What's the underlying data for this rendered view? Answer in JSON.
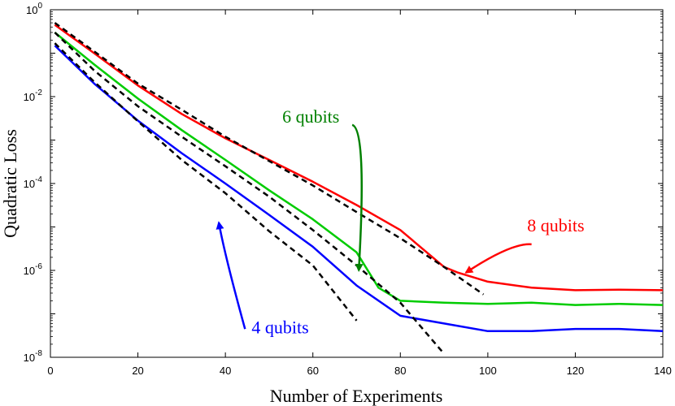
{
  "chart_data": {
    "type": "line",
    "title": "",
    "xlabel": "Number of Experiments",
    "ylabel": "Quadratic Loss",
    "xlim": [
      0,
      140
    ],
    "ylim_exp": [
      -8,
      0
    ],
    "yscale": "log",
    "grid": false,
    "x_ticks": [
      0,
      20,
      40,
      60,
      80,
      100,
      120,
      140
    ],
    "x_tick_labels": [
      "0",
      "20",
      "40",
      "60",
      "80",
      "100",
      "120",
      "140"
    ],
    "y_tick_labels": [
      {
        "exp": 0,
        "base": "10",
        "sup": "0"
      },
      {
        "exp": -2,
        "base": "10",
        "sup": "-2"
      },
      {
        "exp": -4,
        "base": "10",
        "sup": "-4"
      },
      {
        "exp": -6,
        "base": "10",
        "sup": "-6"
      },
      {
        "exp": -8,
        "base": "10",
        "sup": "-8"
      }
    ],
    "series": [
      {
        "color": "#ff0000",
        "style": "solid",
        "points": [
          [
            1,
            0.45
          ],
          [
            10,
            0.1
          ],
          [
            20,
            0.018
          ],
          [
            30,
            0.004
          ],
          [
            40,
            0.0011
          ],
          [
            50,
            0.00035
          ],
          [
            60,
            0.00011
          ],
          [
            70,
            3.2e-05
          ],
          [
            80,
            8.5e-06
          ],
          [
            90,
            1.2e-06
          ],
          [
            93,
            9e-07
          ],
          [
            100,
            5.5e-07
          ],
          [
            110,
            4e-07
          ],
          [
            120,
            3.5e-07
          ],
          [
            130,
            3.6e-07
          ],
          [
            140,
            3.5e-07
          ]
        ]
      },
      {
        "color": "#00cc00",
        "style": "solid",
        "points": [
          [
            1,
            0.3
          ],
          [
            10,
            0.055
          ],
          [
            20,
            0.009
          ],
          [
            30,
            0.0017
          ],
          [
            40,
            0.00035
          ],
          [
            50,
            7e-05
          ],
          [
            60,
            1.5e-05
          ],
          [
            70,
            2.6e-06
          ],
          [
            75,
            4e-07
          ],
          [
            80,
            2e-07
          ],
          [
            90,
            1.8e-07
          ],
          [
            100,
            1.7e-07
          ],
          [
            110,
            1.8e-07
          ],
          [
            120,
            1.6e-07
          ],
          [
            130,
            1.7e-07
          ],
          [
            140,
            1.6e-07
          ]
        ]
      },
      {
        "color": "#0000ff",
        "style": "solid",
        "points": [
          [
            1,
            0.15
          ],
          [
            10,
            0.02
          ],
          [
            20,
            0.0028
          ],
          [
            30,
            0.0005
          ],
          [
            40,
            0.0001
          ],
          [
            50,
            1.9e-05
          ],
          [
            60,
            3.5e-06
          ],
          [
            70,
            4.5e-07
          ],
          [
            80,
            9e-08
          ],
          [
            90,
            6e-08
          ],
          [
            100,
            4e-08
          ],
          [
            110,
            4e-08
          ],
          [
            120,
            4.5e-08
          ],
          [
            130,
            4.5e-08
          ],
          [
            140,
            4e-08
          ]
        ]
      },
      {
        "color": "#000000",
        "style": "dashed",
        "points": [
          [
            1,
            0.5
          ],
          [
            10,
            0.11
          ],
          [
            20,
            0.02
          ],
          [
            30,
            0.005
          ],
          [
            40,
            0.0012
          ],
          [
            50,
            0.00033
          ],
          [
            60,
            9e-05
          ],
          [
            70,
            2.2e-05
          ],
          [
            80,
            5.5e-06
          ],
          [
            90,
            1.2e-06
          ],
          [
            99,
            2.8e-07
          ]
        ]
      },
      {
        "color": "#000000",
        "style": "dashed",
        "points": [
          [
            1,
            0.3
          ],
          [
            10,
            0.04
          ],
          [
            20,
            0.006
          ],
          [
            30,
            0.0012
          ],
          [
            40,
            0.00025
          ],
          [
            50,
            5e-05
          ],
          [
            60,
            8.5e-06
          ],
          [
            70,
            1.3e-06
          ],
          [
            80,
            1.8e-07
          ],
          [
            90,
            1.2e-08
          ]
        ]
      },
      {
        "color": "#000000",
        "style": "dashed",
        "points": [
          [
            1,
            0.17
          ],
          [
            10,
            0.022
          ],
          [
            20,
            0.0027
          ],
          [
            30,
            0.00035
          ],
          [
            40,
            6e-05
          ],
          [
            50,
            8e-06
          ],
          [
            60,
            1.3e-06
          ],
          [
            70,
            7e-08
          ]
        ]
      }
    ],
    "annotations": [
      {
        "text": "8 qubits",
        "color": "#ff0000",
        "text_at": [
          109,
          -5.1
        ],
        "arrow_from": [
          110,
          -5.4
        ],
        "arrow_to": [
          95,
          -6.05
        ]
      },
      {
        "text": "6 qubits",
        "color": "#008000",
        "text_at": [
          53,
          -2.6
        ],
        "arrow_from": [
          69,
          -2.65
        ],
        "arrow_to": [
          70.5,
          -6.0
        ]
      },
      {
        "text": "4 qubits",
        "color": "#0000ff",
        "text_at": [
          46,
          -7.45
        ],
        "arrow_from": [
          44.5,
          -7.35
        ],
        "arrow_to": [
          38.5,
          -4.9
        ]
      }
    ]
  }
}
